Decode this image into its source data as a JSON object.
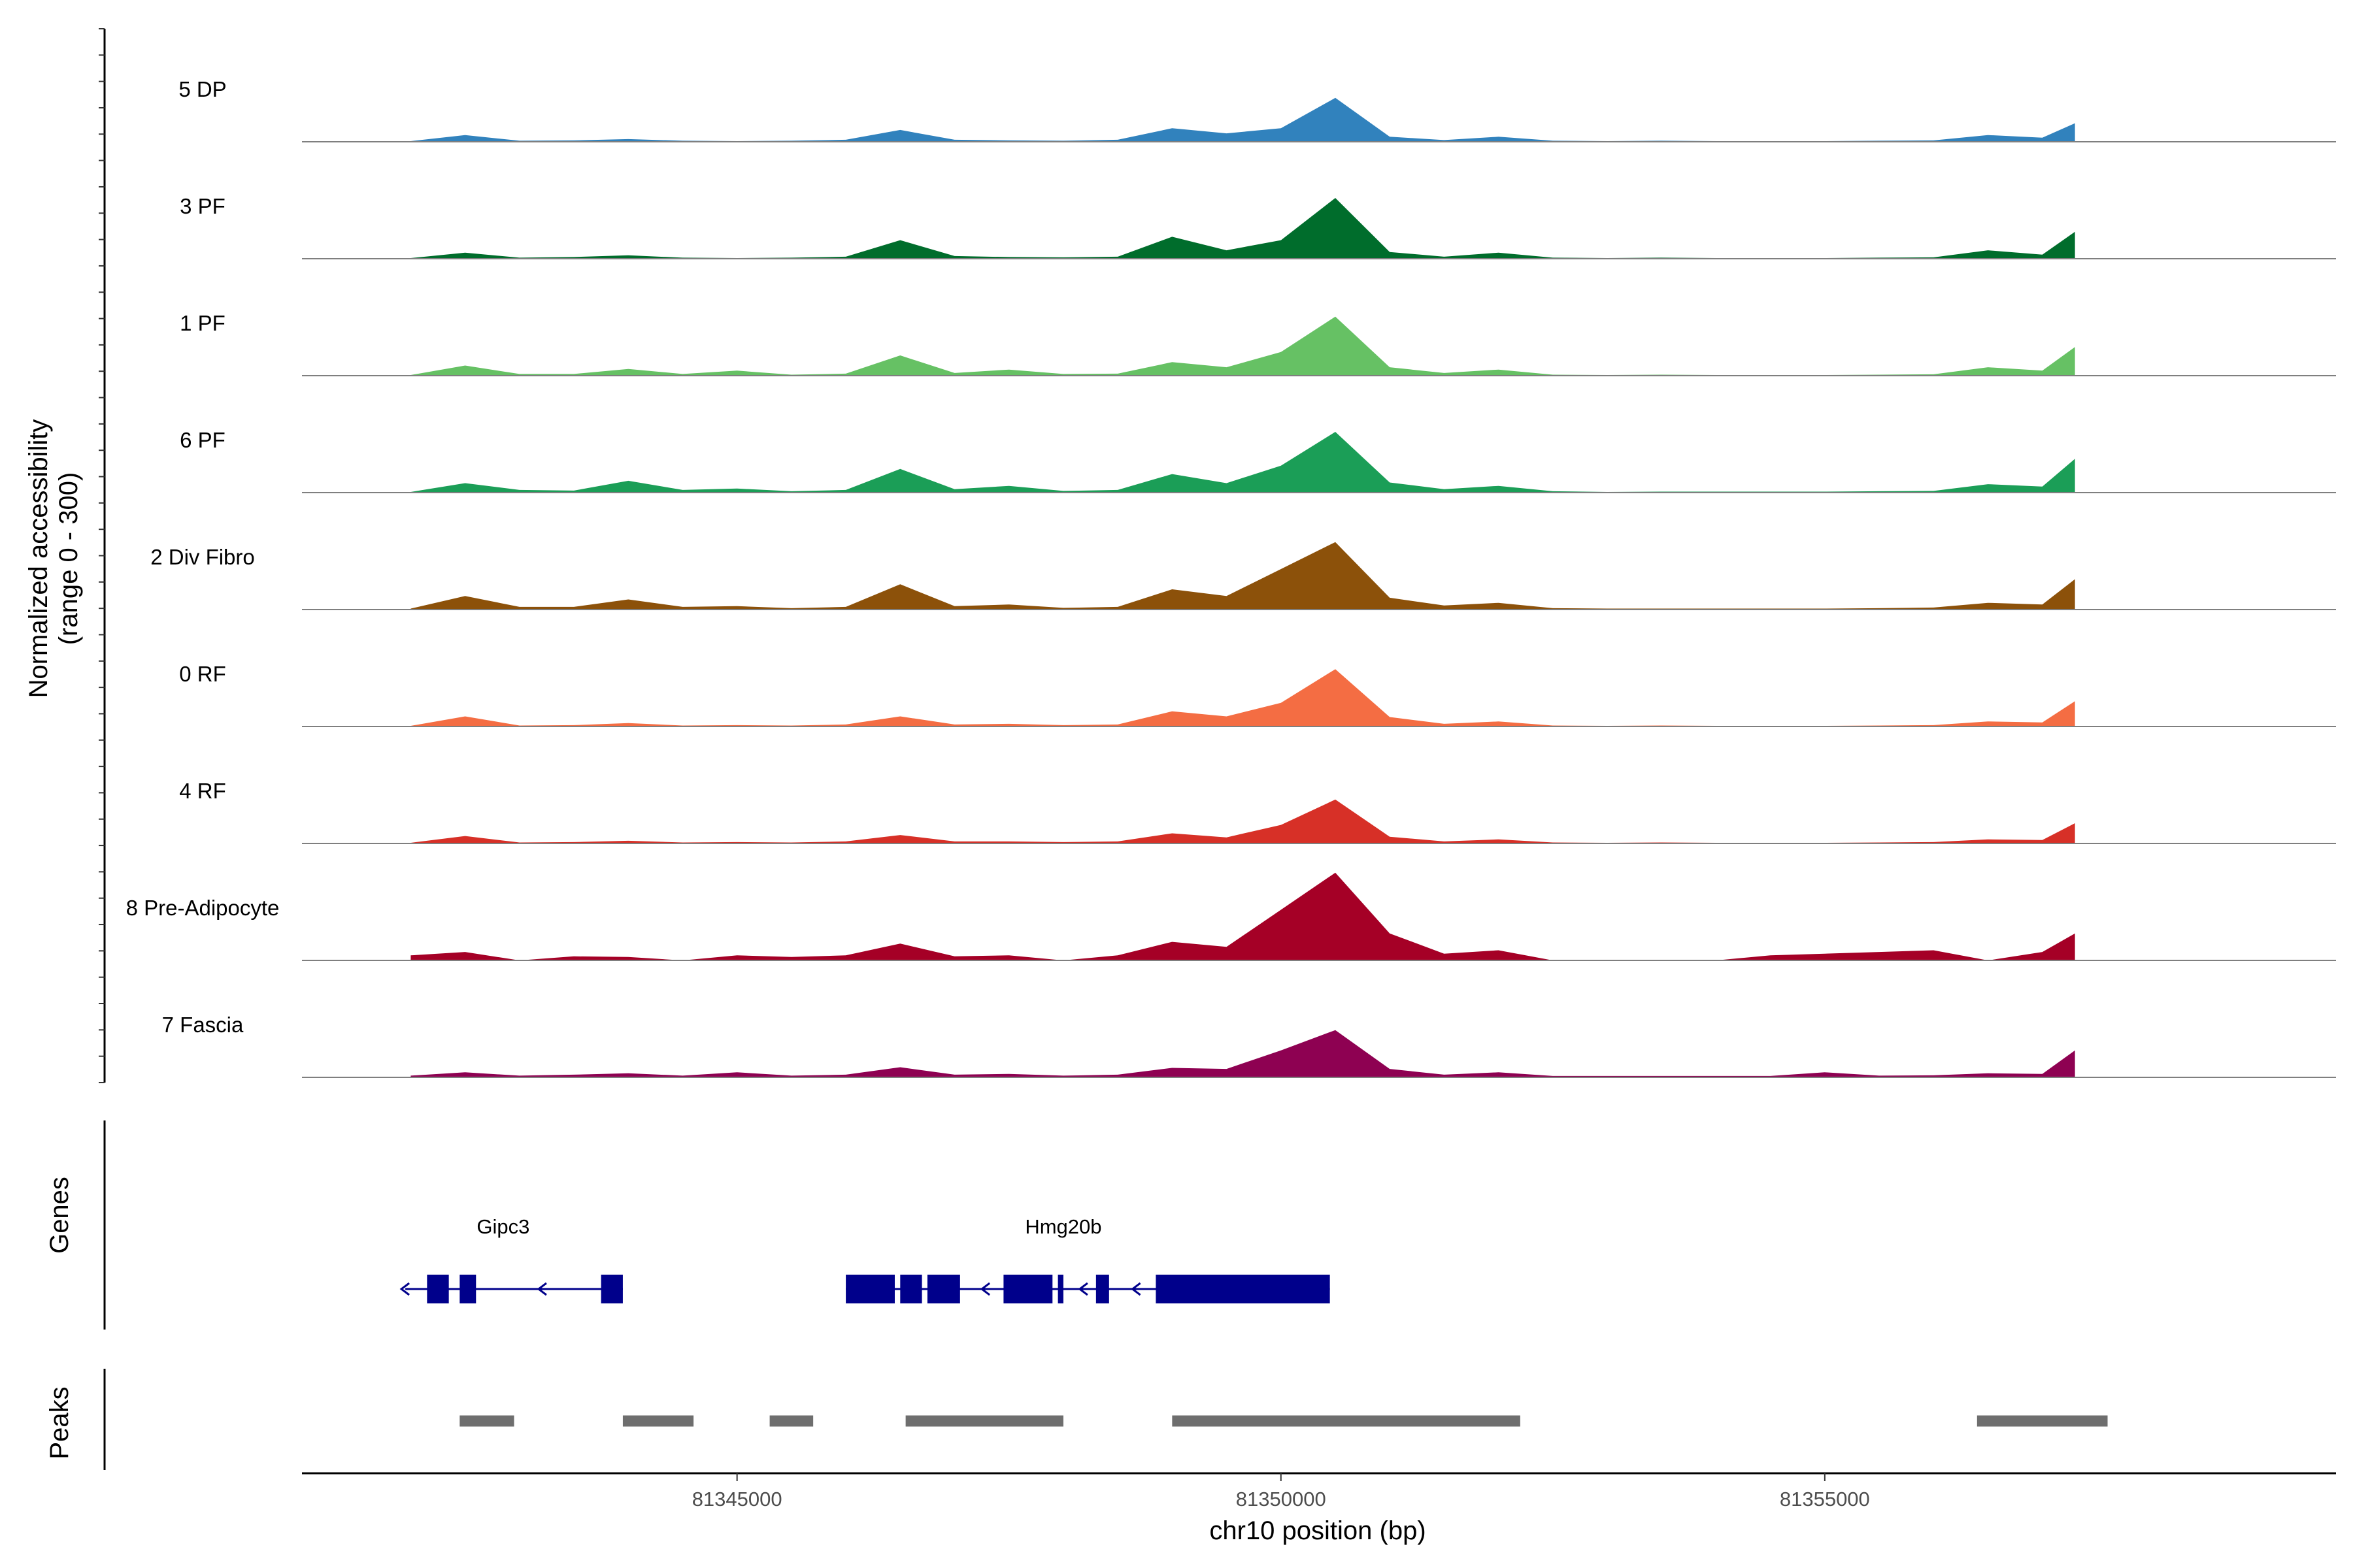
{
  "chart_data": {
    "type": "area",
    "title": "",
    "xlabel": "chr10 position (bp)",
    "xlim": [
      81341000,
      81359700
    ],
    "xticks": [
      81345000,
      81350000,
      81355000
    ],
    "xtick_labels": [
      "81345000",
      "81350000",
      "81355000"
    ],
    "coverage_panel": {
      "ylabel_line1": "Normalized accessibility",
      "ylabel_line2": "(range 0 - 300)",
      "ylim": [
        0,
        300
      ]
    },
    "x": [
      81342000,
      81342500,
      81343000,
      81343500,
      81344000,
      81344500,
      81345000,
      81345500,
      81346000,
      81346500,
      81347000,
      81347500,
      81348000,
      81348500,
      81349000,
      81349500,
      81350000,
      81350500,
      81351000,
      81351500,
      81352000,
      81352500,
      81353000,
      81353500,
      81354000,
      81354500,
      81355000,
      81355500,
      81356000,
      81356500,
      81357000,
      81357300
    ],
    "series": [
      {
        "name": "5 DP",
        "color": "#3182BD",
        "values": [
          2,
          20,
          3,
          4,
          8,
          3,
          2,
          3,
          6,
          35,
          6,
          4,
          3,
          6,
          40,
          25,
          40,
          130,
          15,
          5,
          15,
          3,
          2,
          3,
          2,
          2,
          2,
          3,
          4,
          20,
          12,
          55
        ]
      },
      {
        "name": "3 PF",
        "color": "#006D2C",
        "values": [
          2,
          18,
          3,
          5,
          10,
          3,
          2,
          3,
          6,
          55,
          8,
          5,
          4,
          6,
          65,
          25,
          55,
          180,
          20,
          6,
          18,
          3,
          2,
          3,
          2,
          2,
          2,
          3,
          4,
          25,
          12,
          80
        ]
      },
      {
        "name": "1 PF",
        "color": "#66C164",
        "values": [
          2,
          30,
          5,
          5,
          20,
          5,
          15,
          3,
          6,
          60,
          8,
          18,
          5,
          6,
          40,
          25,
          70,
          175,
          25,
          8,
          18,
          3,
          2,
          3,
          2,
          2,
          2,
          3,
          4,
          25,
          15,
          85
        ]
      },
      {
        "name": "6 PF",
        "color": "#1B9E57",
        "values": [
          2,
          28,
          8,
          6,
          35,
          8,
          12,
          4,
          8,
          70,
          10,
          20,
          5,
          8,
          55,
          28,
          80,
          180,
          30,
          10,
          20,
          4,
          2,
          3,
          3,
          3,
          3,
          4,
          5,
          25,
          18,
          100
        ]
      },
      {
        "name": "2 Div Fibro",
        "color": "#8C510A",
        "values": [
          3,
          40,
          8,
          8,
          30,
          8,
          10,
          4,
          8,
          75,
          10,
          15,
          5,
          8,
          60,
          40,
          120,
          200,
          35,
          12,
          20,
          4,
          3,
          3,
          3,
          3,
          3,
          4,
          6,
          20,
          15,
          90
        ]
      },
      {
        "name": "0 RF",
        "color": "#F46D43",
        "values": [
          2,
          30,
          3,
          4,
          10,
          3,
          4,
          3,
          6,
          30,
          6,
          8,
          4,
          6,
          45,
          30,
          70,
          170,
          28,
          8,
          15,
          3,
          2,
          3,
          2,
          2,
          2,
          3,
          4,
          15,
          12,
          75
        ]
      },
      {
        "name": "4 RF",
        "color": "#D73027",
        "values": [
          2,
          22,
          3,
          4,
          8,
          3,
          4,
          3,
          6,
          25,
          6,
          6,
          4,
          6,
          30,
          18,
          55,
          130,
          20,
          6,
          12,
          3,
          2,
          3,
          2,
          2,
          2,
          3,
          4,
          12,
          10,
          60
        ]
      },
      {
        "name": "8 Pre-Adipocyte",
        "color": "#A50026",
        "values": [
          15,
          25,
          0,
          12,
          10,
          0,
          15,
          10,
          15,
          50,
          12,
          15,
          0,
          15,
          55,
          40,
          150,
          260,
          80,
          20,
          30,
          0,
          0,
          0,
          0,
          15,
          20,
          25,
          30,
          0,
          25,
          80
        ]
      },
      {
        "name": "7 Fascia",
        "color": "#8E0152",
        "values": [
          5,
          15,
          5,
          8,
          12,
          5,
          15,
          5,
          8,
          30,
          8,
          10,
          5,
          8,
          28,
          25,
          80,
          140,
          25,
          8,
          15,
          4,
          4,
          4,
          4,
          4,
          15,
          5,
          6,
          12,
          10,
          80
        ]
      }
    ],
    "genes": [
      {
        "name": "Gipc3",
        "strand": "-",
        "start": 81341950,
        "end": 81343950,
        "exons": [
          [
            81342150,
            81342350
          ],
          [
            81342450,
            81342600
          ],
          [
            81343750,
            81343950
          ]
        ]
      },
      {
        "name": "Hmg20b",
        "strand": "-",
        "start": 81346000,
        "end": 81350450,
        "exons": [
          [
            81346000,
            81346450
          ],
          [
            81346500,
            81346700
          ],
          [
            81346750,
            81347050
          ],
          [
            81347450,
            81347900
          ],
          [
            81347950,
            81348000
          ],
          [
            81348300,
            81348420
          ],
          [
            81348850,
            81350450
          ]
        ]
      }
    ],
    "peaks_label": "Peaks",
    "genes_label": "Genes",
    "peaks": [
      [
        81342450,
        81342950
      ],
      [
        81343950,
        81344600
      ],
      [
        81345300,
        81345700
      ],
      [
        81346550,
        81348000
      ],
      [
        81349000,
        81352200
      ],
      [
        81356400,
        81357600
      ]
    ]
  }
}
